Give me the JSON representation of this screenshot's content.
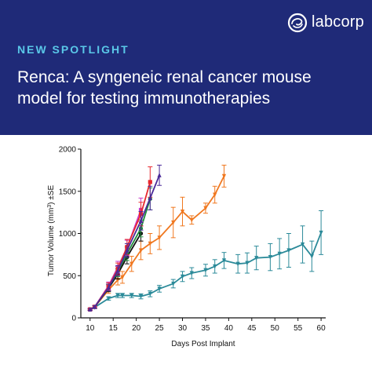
{
  "brand": {
    "name": "labcorp",
    "banner_color": "#1f2a78",
    "accent_color": "#5ac8e8",
    "logo_icon": "labcorp-swirl-icon"
  },
  "header": {
    "eyebrow": "NEW SPOTLIGHT",
    "title_line1": "Renca: A syngeneic renal cancer mouse",
    "title_line2": "model for testing immunotherapies"
  },
  "chart_data": {
    "type": "line",
    "title": "",
    "xlabel": "Days Post Implant",
    "ylabel_main": "Tumor Volume (mm",
    "ylabel_sup": "3",
    "ylabel_tail": ") ±SE",
    "xlim": [
      8,
      61
    ],
    "ylim": [
      0,
      2000
    ],
    "xticks": [
      10,
      15,
      20,
      25,
      30,
      35,
      40,
      45,
      50,
      55,
      60
    ],
    "yticks": [
      0,
      500,
      1000,
      1500,
      2000
    ],
    "series": [
      {
        "color": "#2b8a99",
        "marker": "triangle-down",
        "points": [
          {
            "x": 10,
            "y": 100,
            "e": 10
          },
          {
            "x": 11,
            "y": 125,
            "e": 15
          },
          {
            "x": 14,
            "y": 230,
            "e": 20
          },
          {
            "x": 16,
            "y": 265,
            "e": 25
          },
          {
            "x": 17,
            "y": 265,
            "e": 25
          },
          {
            "x": 19,
            "y": 265,
            "e": 25
          },
          {
            "x": 21,
            "y": 255,
            "e": 30
          },
          {
            "x": 23,
            "y": 285,
            "e": 35
          },
          {
            "x": 25,
            "y": 345,
            "e": 40
          },
          {
            "x": 28,
            "y": 405,
            "e": 50
          },
          {
            "x": 30,
            "y": 490,
            "e": 60
          },
          {
            "x": 32,
            "y": 530,
            "e": 65
          },
          {
            "x": 35,
            "y": 565,
            "e": 70
          },
          {
            "x": 37,
            "y": 610,
            "e": 80
          },
          {
            "x": 39,
            "y": 680,
            "e": 95
          },
          {
            "x": 42,
            "y": 640,
            "e": 110
          },
          {
            "x": 44,
            "y": 650,
            "e": 120
          },
          {
            "x": 46,
            "y": 710,
            "e": 140
          },
          {
            "x": 49,
            "y": 720,
            "e": 160
          },
          {
            "x": 51,
            "y": 760,
            "e": 180
          },
          {
            "x": 53,
            "y": 800,
            "e": 200
          },
          {
            "x": 56,
            "y": 870,
            "e": 220
          },
          {
            "x": 58,
            "y": 730,
            "e": 180
          },
          {
            "x": 60,
            "y": 1010,
            "e": 260
          }
        ]
      },
      {
        "color": "#f07820",
        "marker": "triangle-down",
        "points": [
          {
            "x": 10,
            "y": 100,
            "e": 10
          },
          {
            "x": 11,
            "y": 130,
            "e": 15
          },
          {
            "x": 14,
            "y": 330,
            "e": 40
          },
          {
            "x": 16,
            "y": 450,
            "e": 60
          },
          {
            "x": 17,
            "y": 480,
            "e": 70
          },
          {
            "x": 19,
            "y": 640,
            "e": 90
          },
          {
            "x": 21,
            "y": 800,
            "e": 110
          },
          {
            "x": 23,
            "y": 880,
            "e": 120
          },
          {
            "x": 25,
            "y": 950,
            "e": 140
          },
          {
            "x": 28,
            "y": 1130,
            "e": 180
          },
          {
            "x": 30,
            "y": 1260,
            "e": 170
          },
          {
            "x": 32,
            "y": 1160,
            "e": 50
          },
          {
            "x": 35,
            "y": 1300,
            "e": 60
          },
          {
            "x": 37,
            "y": 1460,
            "e": 100
          },
          {
            "x": 39,
            "y": 1680,
            "e": 130
          }
        ]
      },
      {
        "color": "#111111",
        "marker": "circle",
        "points": [
          {
            "x": 10,
            "y": 100,
            "e": 10
          },
          {
            "x": 11,
            "y": 130,
            "e": 15
          },
          {
            "x": 14,
            "y": 350,
            "e": 40
          },
          {
            "x": 16,
            "y": 520,
            "e": 60
          },
          {
            "x": 18,
            "y": 720,
            "e": 80
          },
          {
            "x": 21,
            "y": 1000,
            "e": 90
          }
        ]
      },
      {
        "color": "#1e8c3a",
        "marker": "circle",
        "points": [
          {
            "x": 10,
            "y": 100,
            "e": 10
          },
          {
            "x": 11,
            "y": 130,
            "e": 15
          },
          {
            "x": 14,
            "y": 360,
            "e": 40
          },
          {
            "x": 16,
            "y": 550,
            "e": 60
          },
          {
            "x": 18,
            "y": 760,
            "e": 80
          },
          {
            "x": 21,
            "y": 1060,
            "e": 100
          },
          {
            "x": 23,
            "y": 1410,
            "e": 130
          }
        ]
      },
      {
        "color": "#c83cc8",
        "marker": "square",
        "points": [
          {
            "x": 10,
            "y": 100,
            "e": 10
          },
          {
            "x": 11,
            "y": 130,
            "e": 15
          },
          {
            "x": 14,
            "y": 380,
            "e": 45
          },
          {
            "x": 16,
            "y": 600,
            "e": 70
          },
          {
            "x": 18,
            "y": 830,
            "e": 90
          },
          {
            "x": 21,
            "y": 1280,
            "e": 140
          }
        ]
      },
      {
        "color": "#e8282e",
        "marker": "square",
        "points": [
          {
            "x": 10,
            "y": 100,
            "e": 10
          },
          {
            "x": 11,
            "y": 130,
            "e": 15
          },
          {
            "x": 14,
            "y": 370,
            "e": 45
          },
          {
            "x": 16,
            "y": 580,
            "e": 70
          },
          {
            "x": 18,
            "y": 840,
            "e": 90
          },
          {
            "x": 21,
            "y": 1230,
            "e": 140
          },
          {
            "x": 23,
            "y": 1610,
            "e": 180
          }
        ]
      },
      {
        "color": "#4a2a98",
        "marker": "triangle-up",
        "points": [
          {
            "x": 10,
            "y": 100,
            "e": 10
          },
          {
            "x": 11,
            "y": 130,
            "e": 15
          },
          {
            "x": 14,
            "y": 360,
            "e": 40
          },
          {
            "x": 16,
            "y": 560,
            "e": 60
          },
          {
            "x": 18,
            "y": 800,
            "e": 80
          },
          {
            "x": 21,
            "y": 1150,
            "e": 110
          },
          {
            "x": 23,
            "y": 1420,
            "e": 140
          },
          {
            "x": 25,
            "y": 1690,
            "e": 120
          }
        ]
      }
    ]
  }
}
